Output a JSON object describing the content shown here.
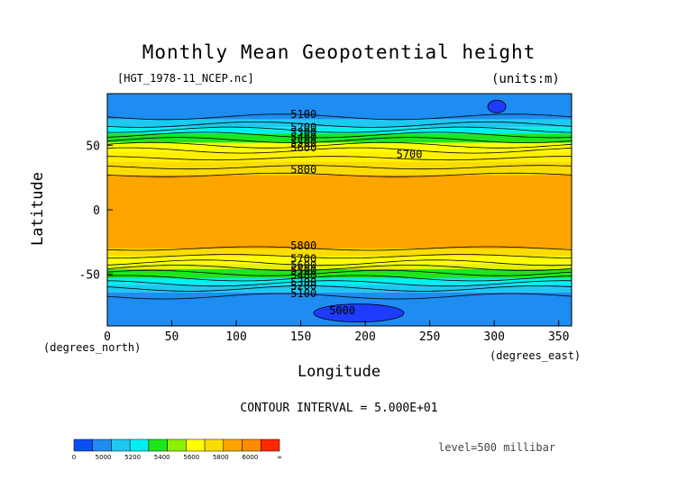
{
  "chart_data": {
    "type": "heatmap",
    "title": "Monthly Mean Geopotential height",
    "file_label": "[HGT_1978-11_NCEP.nc]",
    "units_label": "(units:m)",
    "xlabel": "Longitude",
    "xlabel_units": "(degrees_east)",
    "ylabel": "Latitude",
    "ylabel_units": "(degrees_north)",
    "contour_interval_text": "CONTOUR INTERVAL = 5.000E+01",
    "level_text": "level=500 millibar",
    "xlim": [
      0,
      360
    ],
    "ylim": [
      -90,
      90
    ],
    "x_ticks": [
      0,
      50,
      100,
      150,
      200,
      250,
      300,
      350
    ],
    "y_ticks": [
      50,
      0,
      -50
    ],
    "bands": [
      {
        "lat_top": 90,
        "lat_bottom": 70,
        "value": 5100,
        "color": "#1e8cf0"
      },
      {
        "lat_top": 70,
        "lat_bottom": 64,
        "value": 5250,
        "color": "#1ec8f0"
      },
      {
        "lat_top": 64,
        "lat_bottom": 59,
        "value": 5350,
        "color": "#00f0f0"
      },
      {
        "lat_top": 59,
        "lat_bottom": 52,
        "value": 5450,
        "color": "#1ee61e"
      },
      {
        "lat_top": 52,
        "lat_bottom": 45,
        "value": 5550,
        "color": "#ffff00"
      },
      {
        "lat_top": 45,
        "lat_bottom": 37,
        "value": 5650,
        "color": "#fff000"
      },
      {
        "lat_top": 37,
        "lat_bottom": 27,
        "value": 5750,
        "color": "#fadc00"
      },
      {
        "lat_top": 27,
        "lat_bottom": -30,
        "value": 5850,
        "color": "#ffa500"
      },
      {
        "lat_top": -30,
        "lat_bottom": -36,
        "value": 5750,
        "color": "#fadc00"
      },
      {
        "lat_top": -36,
        "lat_bottom": -42,
        "value": 5650,
        "color": "#ffff00"
      },
      {
        "lat_top": -42,
        "lat_bottom": -46,
        "value": 5550,
        "color": "#e6f000"
      },
      {
        "lat_top": -46,
        "lat_bottom": -53,
        "value": 5450,
        "color": "#1ee61e"
      },
      {
        "lat_top": -53,
        "lat_bottom": -58,
        "value": 5350,
        "color": "#00f0f0"
      },
      {
        "lat_top": -58,
        "lat_bottom": -64,
        "value": 5250,
        "color": "#1ec8f0"
      },
      {
        "lat_top": -64,
        "lat_bottom": -90,
        "value": 5100,
        "color": "#1e8cf0"
      }
    ],
    "lows": [
      {
        "lon": 195,
        "lat": -80,
        "value": 5000,
        "color": "#1e3cff"
      },
      {
        "lon": 302,
        "lat": 80,
        "value": 5000,
        "color": "#1e3cff"
      }
    ],
    "contour_labels": [
      {
        "text": "5100",
        "lon": 140,
        "lat": 74
      },
      {
        "text": "5200",
        "lon": 140,
        "lat": 64
      },
      {
        "text": "5300",
        "lon": 140,
        "lat": 60
      },
      {
        "text": "5400",
        "lon": 140,
        "lat": 56
      },
      {
        "text": "5500",
        "lon": 140,
        "lat": 52
      },
      {
        "text": "5600",
        "lon": 140,
        "lat": 48
      },
      {
        "text": "5700",
        "lon": 222,
        "lat": 43
      },
      {
        "text": "5800",
        "lon": 140,
        "lat": 31
      },
      {
        "text": "5800",
        "lon": 140,
        "lat": -28
      },
      {
        "text": "5700",
        "lon": 140,
        "lat": -38
      },
      {
        "text": "5600",
        "lon": 140,
        "lat": -43
      },
      {
        "text": "5500",
        "lon": 140,
        "lat": -47
      },
      {
        "text": "5400",
        "lon": 140,
        "lat": -51
      },
      {
        "text": "5300",
        "lon": 140,
        "lat": -56
      },
      {
        "text": "5200",
        "lon": 140,
        "lat": -59
      },
      {
        "text": "5100",
        "lon": 140,
        "lat": -65
      },
      {
        "text": "5000",
        "lon": 170,
        "lat": -78
      }
    ],
    "colorbar": {
      "colors": [
        "#0a50f0",
        "#1e8cf0",
        "#1ec8f0",
        "#00f0f0",
        "#1ee61e",
        "#8cf000",
        "#ffff00",
        "#fadc00",
        "#ffa500",
        "#ff8c00",
        "#ff2800"
      ],
      "labels": [
        "0",
        "5000",
        "5200",
        "5400",
        "5600",
        "5800",
        "6000",
        "∞"
      ]
    }
  }
}
